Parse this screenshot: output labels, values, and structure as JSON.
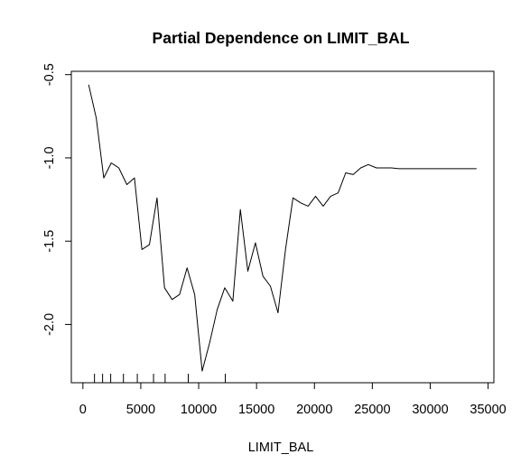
{
  "chart_data": {
    "type": "line",
    "title": "Partial Dependence on LIMIT_BAL",
    "xlabel": "LIMIT_BAL",
    "ylabel": "",
    "xlim": [
      -1000,
      35500
    ],
    "ylim": [
      -2.35,
      -0.48
    ],
    "x_ticks": [
      0,
      5000,
      10000,
      15000,
      20000,
      25000,
      30000,
      35000
    ],
    "x_tick_labels": [
      "0",
      "5000",
      "10000",
      "15000",
      "20000",
      "25000",
      "30000",
      "35000"
    ],
    "y_ticks": [
      -2.0,
      -1.5,
      -1.0,
      -0.5
    ],
    "y_tick_labels": [
      "-2.0",
      "-1.5",
      "-1.0",
      "-0.5"
    ],
    "grid": false,
    "series": [
      {
        "color": "#000000",
        "x": [
          500,
          1150,
          1800,
          2450,
          3100,
          3800,
          4450,
          5100,
          5750,
          6400,
          7050,
          7700,
          8350,
          9000,
          9650,
          10300,
          10950,
          11600,
          12250,
          12950,
          13600,
          14250,
          14900,
          15550,
          16200,
          16850,
          17500,
          18150,
          18800,
          19450,
          20100,
          20750,
          21400,
          22050,
          22700,
          23350,
          24000,
          24650,
          25350,
          26000,
          26650,
          27300,
          28000,
          30000,
          32000,
          34000
        ],
        "y": [
          -0.56,
          -0.76,
          -1.12,
          -1.03,
          -1.06,
          -1.16,
          -1.12,
          -1.55,
          -1.52,
          -1.24,
          -1.78,
          -1.85,
          -1.82,
          -1.66,
          -1.82,
          -2.28,
          -2.11,
          -1.91,
          -1.78,
          -1.86,
          -1.31,
          -1.68,
          -1.51,
          -1.71,
          -1.77,
          -1.93,
          -1.55,
          -1.24,
          -1.27,
          -1.29,
          -1.23,
          -1.29,
          -1.23,
          -1.21,
          -1.09,
          -1.1,
          -1.06,
          -1.04,
          -1.06,
          -1.06,
          -1.06,
          -1.065,
          -1.065,
          -1.065,
          -1.065,
          -1.065
        ]
      }
    ],
    "rug": [
      1000,
      1700,
      2400,
      3500,
      4700,
      6100,
      7100,
      9100,
      12300
    ]
  }
}
